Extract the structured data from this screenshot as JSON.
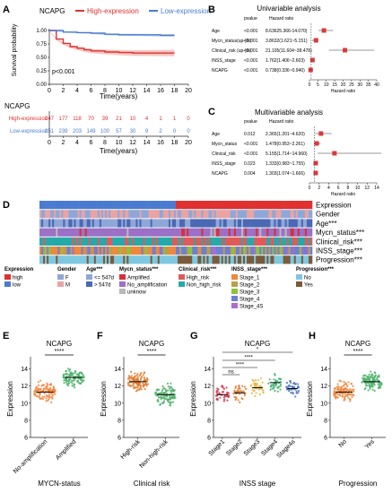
{
  "colors": {
    "high": "#e03030",
    "low": "#4a7bd0",
    "gender_f": "#8fa7d8",
    "gender_m": "#e9a3a3",
    "age_le": "#8fa7d8",
    "age_gt": "#4a68b4",
    "mycn_amp": "#d6303c",
    "mycn_no": "#9b70c6",
    "mycn_unk": "#b9b9b9",
    "risk_high": "#e05a5a",
    "risk_non": "#25a9a9",
    "stage1": "#f0873a",
    "stage2": "#b8a04a",
    "stage3": "#8cc43c",
    "stage4": "#6f7fd1",
    "stage4s": "#a66fd1",
    "prog_no": "#7dc8e0",
    "prog_yes": "#7a5a3a"
  },
  "panelA": {
    "letter": "A",
    "legend_title": "NCAPG",
    "legend_high": "High-expression",
    "legend_low": "Low-expression",
    "ylabel": "Survival probability",
    "xlabel": "Time(years)",
    "pvalue": "p<0.001",
    "yticks": [
      "0.00",
      "0.25",
      "0.50",
      "0.75",
      "1.00"
    ],
    "xticks": [
      "0",
      "2",
      "4",
      "6",
      "8",
      "10",
      "12",
      "14",
      "16",
      "18",
      "20"
    ],
    "risk_title": "NCAPG",
    "risk_row_high": "High-expression",
    "risk_row_low": "Low-expression",
    "risk_high": [
      "247",
      "177",
      "118",
      "70",
      "39",
      "21",
      "10",
      "4",
      "1",
      "1",
      "0"
    ],
    "risk_low": [
      "251",
      "239",
      "203",
      "149",
      "100",
      "57",
      "30",
      "9",
      "2",
      "0",
      "0"
    ],
    "risk_xlabel": "Time(years)"
  },
  "panelB": {
    "letter": "B",
    "title": "Univariable analysis",
    "col_p": "pvalue",
    "col_hr": "Hazard ratio",
    "rows": [
      {
        "name": "Age",
        "p": "<0.001",
        "hr": "8.63625.366-14.070)"
      },
      {
        "name": "Mycn_status(up-)hi)",
        "p": "<0.001",
        "hr": "3.8632(1.621~5.151)"
      },
      {
        "name": "Clinical_risk (up-)hi)",
        "p": "<0.001",
        "hr": "21.105(11.604~38.478)"
      },
      {
        "name": "INSS_stage",
        "p": "<0.001",
        "hr": "1.762(1.406~2.603)"
      },
      {
        "name": "NCAPG",
        "p": "<0.001",
        "hr": "0.738(0.336~0.940)"
      }
    ],
    "axis_label": "Hazard ratio",
    "ticks": [
      "0",
      "5",
      "10",
      "15",
      "20",
      "25",
      "30",
      "35",
      "40"
    ]
  },
  "panelC": {
    "letter": "C",
    "title": "Multivariable analysis",
    "col_p": "pvalue",
    "col_hr": "Hazard ratio",
    "rows": [
      {
        "name": "Age",
        "p": "0.012",
        "hr": "2.365(1.201~4.620)"
      },
      {
        "name": "Mycn_status",
        "p": "<0.001",
        "hr": "1.478(0.953~2.261)"
      },
      {
        "name": "Clinical_risk",
        "p": "<0.001",
        "hr": "5.155(1.714~14.960)"
      },
      {
        "name": "INSS_stage",
        "p": "0.023",
        "hr": "1.333(0.983~1.755)"
      },
      {
        "name": "NCAPG",
        "p": "0.004",
        "hr": "1.303(1.074~1.666)"
      }
    ],
    "axis_label": "Hazard ratio",
    "ticks": [
      "0",
      "2",
      "4",
      "6",
      "8",
      "10",
      "12",
      "14"
    ]
  },
  "panelD": {
    "letter": "D",
    "track_labels": [
      "Expression",
      "Gender",
      "Age***",
      "Mycn_status***",
      "Clinical_risk***",
      "INSS_stage***",
      "Progression***"
    ],
    "legend": {
      "expression": {
        "title": "Expression",
        "items": [
          "high",
          "low"
        ]
      },
      "gender": {
        "title": "Gender",
        "items": [
          "F",
          "M"
        ]
      },
      "age": {
        "title": "Age***",
        "items": [
          "<= 547d",
          "> 547d"
        ]
      },
      "mycn": {
        "title": "Mycn_status***",
        "items": [
          "Amplified",
          "No_amplification",
          "unknow"
        ]
      },
      "risk": {
        "title": "Clinical_risk***",
        "items": [
          "High_risk",
          "Non_high_risk"
        ]
      },
      "stage": {
        "title": "INSS_stage***",
        "items": [
          "Stage_1",
          "Stage_2",
          "Stage_3",
          "Stage_4",
          "Stage_4S"
        ]
      },
      "prog": {
        "title": "Progression***",
        "items": [
          "No",
          "Yes"
        ]
      }
    }
  },
  "panelE": {
    "letter": "E",
    "title": "NCAPG",
    "sig": "****",
    "ylabel": "Expression",
    "yticks": [
      "6",
      "8",
      "10",
      "12",
      "14"
    ],
    "categories": [
      "No-amplification",
      "Amplified"
    ],
    "xlabel": "MYCN-status"
  },
  "panelF": {
    "letter": "F",
    "title": "NCAPG",
    "sig": "****",
    "ylabel": "Expression",
    "yticks": [
      "6",
      "8",
      "10",
      "12",
      "14"
    ],
    "categories": [
      "High-risk",
      "Non-high-risk"
    ],
    "xlabel": "Clinical risk"
  },
  "panelG": {
    "letter": "G",
    "title": "NCAPG",
    "ylabel": "Expression",
    "yticks": [
      "6",
      "8",
      "10",
      "12",
      "14"
    ],
    "categories": [
      "Stage1",
      "Stage2",
      "Stage3",
      "Stage4",
      "Stage4s"
    ],
    "xlabel": "INSS stage",
    "sig_labels": [
      "*",
      "****",
      "****",
      "ns"
    ]
  },
  "panelH": {
    "letter": "H",
    "title": "NCAPG",
    "sig": "****",
    "ylabel": "Expression",
    "yticks": [
      "6",
      "8",
      "10",
      "12",
      "14"
    ],
    "categories": [
      "No",
      "Yes"
    ],
    "xlabel": "Progression"
  },
  "chart_data": [
    {
      "type": "line",
      "title": "NCAPG",
      "xlabel": "Time(years)",
      "ylabel": "Survival probability",
      "xlim": [
        0,
        20
      ],
      "ylim": [
        0,
        1
      ],
      "series": [
        {
          "name": "High-expression",
          "x": [
            0,
            1,
            2,
            3,
            4,
            5,
            6,
            8,
            10,
            12,
            16,
            18
          ],
          "values": [
            1.0,
            0.84,
            0.76,
            0.7,
            0.67,
            0.64,
            0.62,
            0.6,
            0.59,
            0.58,
            0.58,
            0.58
          ]
        },
        {
          "name": "Low-expression",
          "x": [
            0,
            2,
            4,
            6,
            8,
            10,
            12,
            16,
            18
          ],
          "values": [
            1.0,
            0.97,
            0.96,
            0.95,
            0.93,
            0.92,
            0.92,
            0.91,
            0.91
          ]
        }
      ]
    },
    {
      "type": "scatter",
      "title": "NCAPG",
      "xlabel": "MYCN-status",
      "ylabel": "Expression",
      "ylim": [
        6,
        15
      ],
      "categories": [
        "No-amplification",
        "Amplified"
      ],
      "values": [
        11.3,
        13.0
      ]
    },
    {
      "type": "scatter",
      "title": "NCAPG",
      "xlabel": "Clinical risk",
      "ylabel": "Expression",
      "ylim": [
        6,
        15
      ],
      "categories": [
        "High-risk",
        "Non-high-risk"
      ],
      "values": [
        12.5,
        11.0
      ]
    },
    {
      "type": "scatter",
      "title": "NCAPG",
      "xlabel": "INSS stage",
      "ylabel": "Expression",
      "ylim": [
        6,
        15
      ],
      "categories": [
        "Stage1",
        "Stage2",
        "Stage3",
        "Stage4",
        "Stage4s"
      ],
      "values": [
        11.0,
        11.2,
        11.8,
        12.4,
        11.7
      ]
    },
    {
      "type": "scatter",
      "title": "NCAPG",
      "xlabel": "Progression",
      "ylabel": "Expression",
      "ylim": [
        6,
        15
      ],
      "categories": [
        "No",
        "Yes"
      ],
      "values": [
        11.3,
        12.5
      ]
    }
  ]
}
